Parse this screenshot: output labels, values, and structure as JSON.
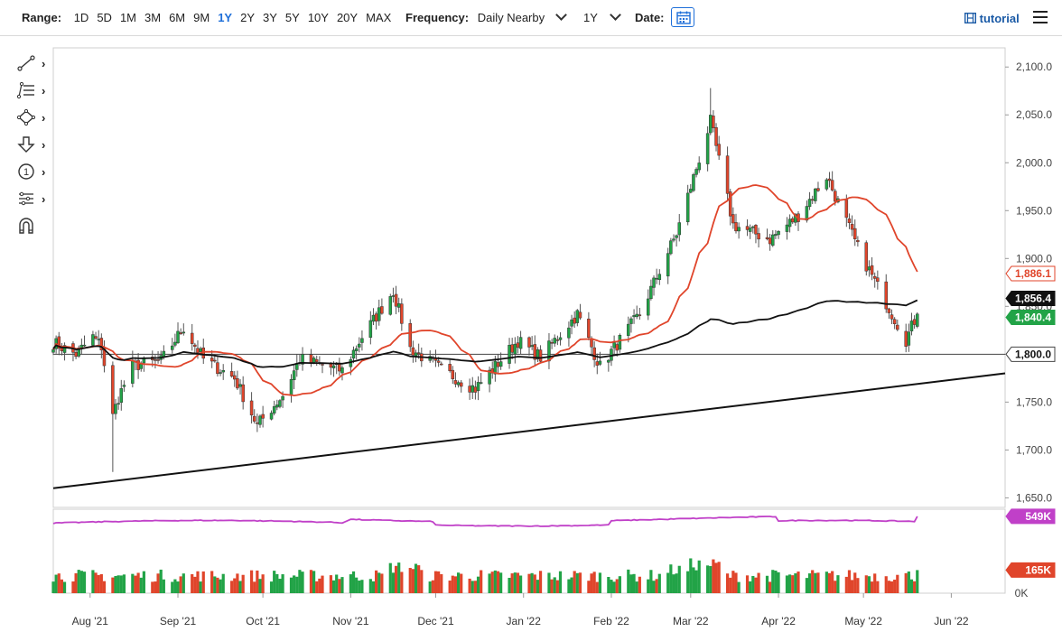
{
  "toolbar": {
    "range_label": "Range:",
    "ranges": [
      "1D",
      "5D",
      "1M",
      "3M",
      "6M",
      "9M",
      "1Y",
      "2Y",
      "3Y",
      "5Y",
      "10Y",
      "20Y",
      "MAX"
    ],
    "active_range": "1Y",
    "frequency_label": "Frequency:",
    "frequency_value": "Daily Nearby",
    "period_value": "1Y",
    "date_label": "Date:",
    "tutorial_label": "tutorial"
  },
  "drawing_tools": [
    "line-tool-icon",
    "fibonacci-tool-icon",
    "shape-tool-icon",
    "arrow-tool-icon",
    "annotation-tool-icon",
    "pattern-tool-icon",
    "magnet-tool-icon"
  ],
  "drawing_tool_annotation_glyph": "1",
  "chart_data": {
    "type": "candlestick",
    "x_ticks": [
      "Aug '21",
      "Sep '21",
      "Oct '21",
      "Nov '21",
      "Dec '21",
      "Jan '22",
      "Feb '22",
      "Mar '22",
      "Apr '22",
      "May '22",
      "Jun '22"
    ],
    "y_ticks": [
      "2,100.0",
      "2,050.0",
      "2,000.0",
      "1,950.0",
      "1,900.0",
      "1,850.0",
      "1,800.0",
      "1,750.0",
      "1,700.0",
      "1,650.0"
    ],
    "ylim": [
      1640,
      2120
    ],
    "grid": false,
    "price": {
      "ohlc_anchors": [
        {
          "date": "2021-07-19",
          "close": 1812
        },
        {
          "date": "2021-07-27",
          "close": 1800
        },
        {
          "date": "2021-08-02",
          "close": 1818
        },
        {
          "date": "2021-08-05",
          "close": 1808
        },
        {
          "date": "2021-08-09",
          "close": 1735
        },
        {
          "date": "2021-08-11",
          "close": 1755
        },
        {
          "date": "2021-08-16",
          "close": 1788
        },
        {
          "date": "2021-08-26",
          "close": 1793
        },
        {
          "date": "2021-09-03",
          "close": 1828
        },
        {
          "date": "2021-09-10",
          "close": 1795
        },
        {
          "date": "2021-09-21",
          "close": 1775
        },
        {
          "date": "2021-09-29",
          "close": 1726
        },
        {
          "date": "2021-10-08",
          "close": 1757
        },
        {
          "date": "2021-10-14",
          "close": 1795
        },
        {
          "date": "2021-10-29",
          "close": 1783
        },
        {
          "date": "2021-11-05",
          "close": 1818
        },
        {
          "date": "2021-11-16",
          "close": 1866
        },
        {
          "date": "2021-11-22",
          "close": 1806
        },
        {
          "date": "2021-12-03",
          "close": 1784
        },
        {
          "date": "2021-12-15",
          "close": 1764
        },
        {
          "date": "2021-12-30",
          "close": 1814
        },
        {
          "date": "2022-01-07",
          "close": 1797
        },
        {
          "date": "2022-01-20",
          "close": 1842
        },
        {
          "date": "2022-01-28",
          "close": 1787
        },
        {
          "date": "2022-02-11",
          "close": 1842
        },
        {
          "date": "2022-02-24",
          "close": 1926
        },
        {
          "date": "2022-03-08",
          "close": 2043
        },
        {
          "date": "2022-03-16",
          "close": 1935
        },
        {
          "date": "2022-03-29",
          "close": 1920
        },
        {
          "date": "2022-04-08",
          "close": 1945
        },
        {
          "date": "2022-04-18",
          "close": 1986
        },
        {
          "date": "2022-04-29",
          "close": 1911
        },
        {
          "date": "2022-05-05",
          "close": 1876
        },
        {
          "date": "2022-05-16",
          "close": 1815
        },
        {
          "date": "2022-05-20",
          "close": 1842
        }
      ],
      "spike_low": {
        "date": "2021-08-09",
        "low": 1677
      },
      "spike_high": {
        "date": "2022-03-08",
        "high": 2078
      }
    },
    "moving_average_50": {
      "color": "#e0452b",
      "last_label": "1,886.1",
      "last_value": 1886.1
    },
    "moving_average_200": {
      "color": "#111111",
      "last_label": "1,856.4",
      "last_value": 1856.4
    },
    "last_price": {
      "label": "1,840.4",
      "value": 1840.4
    },
    "horizontal_level": {
      "label": "1,800.0",
      "value": 1800.0
    },
    "trendline": {
      "start": {
        "date": "2021-07-19",
        "value": 1660
      },
      "end": {
        "date": "2022-06-20",
        "value": 1780
      }
    },
    "volume": {
      "current_label": "165K",
      "open_interest_label": "549K",
      "zero_label": "0K",
      "up_color": "#22a347",
      "down_color": "#e0452b",
      "oi_color": "#c040c8"
    }
  }
}
